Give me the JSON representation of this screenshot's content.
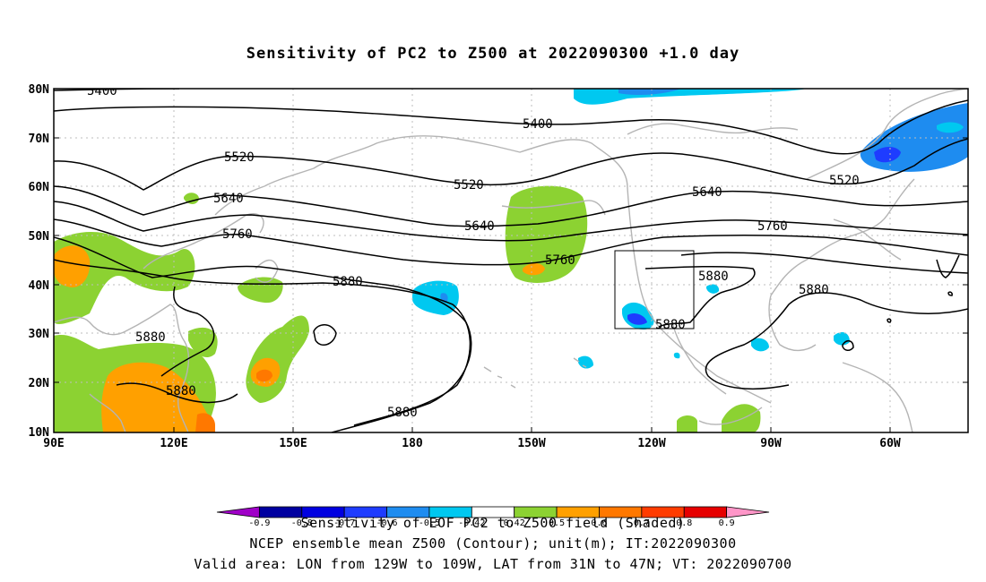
{
  "title": "Sensitivity of PC2 to Z500 at 2022090300 +1.0 day",
  "lat_labels": [
    "80N",
    "70N",
    "60N",
    "50N",
    "40N",
    "30N",
    "20N",
    "10N"
  ],
  "lon_labels": [
    "90E",
    "120E",
    "150E",
    "180",
    "150W",
    "120W",
    "90W",
    "60W"
  ],
  "contour_labels": [
    "5400",
    "5400",
    "5520",
    "5520",
    "5520",
    "5640",
    "5640",
    "5640",
    "5760",
    "5760",
    "5760",
    "5880",
    "5880",
    "5880",
    "5880",
    "5880",
    "5880",
    "5880"
  ],
  "colorbar": {
    "ticks": [
      "-0.9",
      "-0.8",
      "-0.7",
      "-0.6",
      "-0.5",
      "-0.42",
      "0.42",
      "0.5",
      "0.6",
      "0.7",
      "0.8",
      "0.9"
    ],
    "colors": [
      "#a000c8",
      "#0000a0",
      "#0000e0",
      "#1e3cff",
      "#1e8cf0",
      "#00c8f0",
      "#ffffff",
      "#8cd232",
      "#ffa000",
      "#ff7800",
      "#ff3c00",
      "#e60000",
      "#ff96c8"
    ]
  },
  "captions": {
    "line1": "Sensitivity of EOF PC2 to Z500 field (Shaded)",
    "line2": "NCEP ensemble mean Z500 (Contour); unit(m); IT:2022090300",
    "line3": "Valid area: LON from 129W to 109W, LAT from 31N to 47N; VT: 2022090700"
  }
}
